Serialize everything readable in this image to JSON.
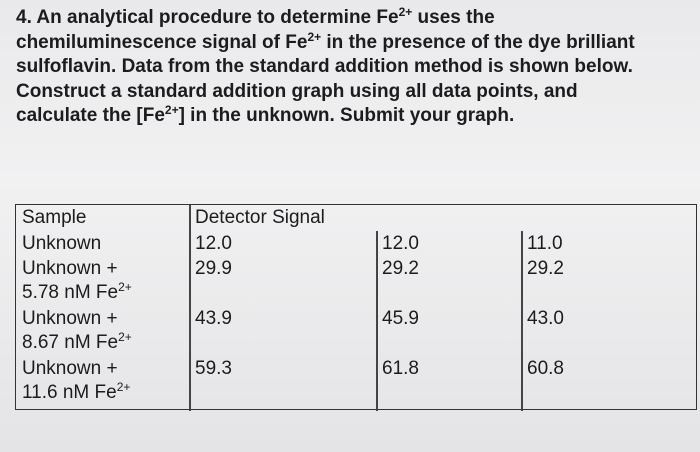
{
  "question": {
    "lines": [
      [
        {
          "text": "4. An analytical procedure to determine Fe"
        },
        {
          "sup": "2+"
        },
        {
          "text": " uses the"
        }
      ],
      [
        {
          "text": "chemiluminescence signal of Fe"
        },
        {
          "sup": "2+"
        },
        {
          "text": " in the presence of the dye brilliant"
        }
      ],
      [
        {
          "text": "sulfoflavin. Data from the standard addition method is shown below."
        }
      ],
      [
        {
          "text": "Construct a standard addition graph using all data points, and"
        }
      ],
      [
        {
          "text": "calculate the [Fe"
        },
        {
          "sup": "2+"
        },
        {
          "text": "] in the unknown. Submit your graph."
        }
      ]
    ]
  },
  "table": {
    "header": [
      "Sample",
      "Detector Signal"
    ],
    "rows": [
      {
        "sample": [
          {
            "text": "Unknown"
          }
        ],
        "signals": [
          "12.0",
          "12.0",
          "11.0"
        ]
      },
      {
        "sample": [
          {
            "text": "Unknown +"
          },
          {
            "text": "5.78 nM Fe"
          },
          {
            "sup": "2+"
          }
        ],
        "signals": [
          "29.9",
          "29.2",
          "29.2"
        ]
      },
      {
        "sample": [
          {
            "text": "Unknown +"
          },
          {
            "text": "8.67 nM Fe"
          },
          {
            "sup": "2+"
          }
        ],
        "signals": [
          "43.9",
          "45.9",
          "43.0"
        ]
      },
      {
        "sample": [
          {
            "text": "Unknown +"
          },
          {
            "text": "11.6 nM Fe"
          },
          {
            "sup": "2+"
          }
        ],
        "signals": [
          "59.3",
          "61.8",
          "60.8"
        ]
      }
    ]
  }
}
